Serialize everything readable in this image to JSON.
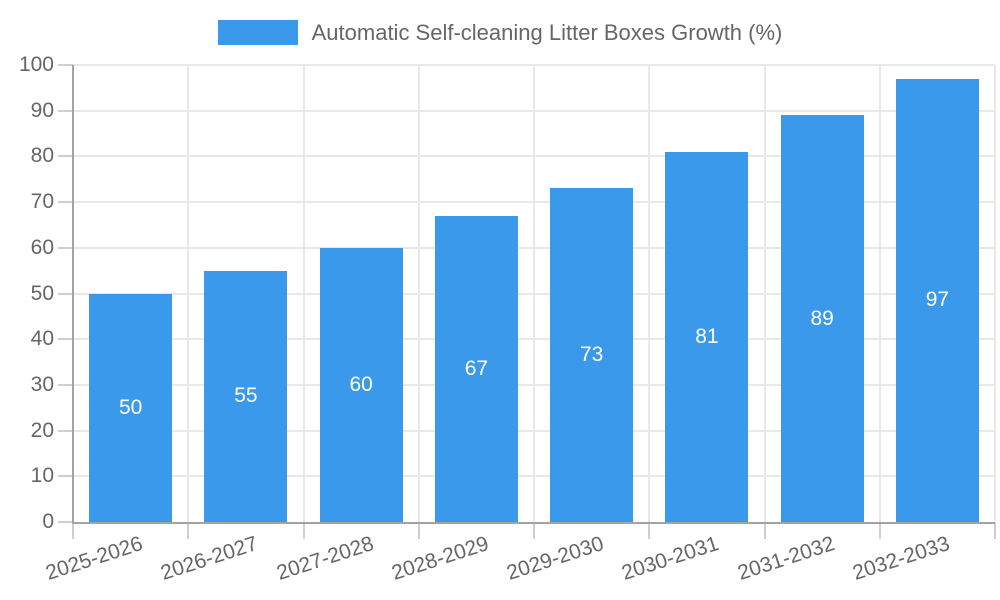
{
  "chart_data": {
    "type": "bar",
    "title": "Automatic Self-cleaning Litter Boxes Growth (%)",
    "categories": [
      "2025-2026",
      "2026-2027",
      "2027-2028",
      "2028-2029",
      "2029-2030",
      "2030-2031",
      "2031-2032",
      "2032-2033"
    ],
    "values": [
      50,
      55,
      60,
      67,
      73,
      81,
      89,
      97
    ],
    "xlabel": "",
    "ylabel": "",
    "ylim": [
      0,
      100
    ],
    "ytick_step": 10,
    "grid": "on",
    "legend_position": "top-center",
    "value_labels": "inside-center",
    "colors": {
      "bar": "#3B99EC",
      "value_label": "#FFFFFF",
      "axis_text": "#666666",
      "grid_line": "#E8E8E8",
      "tick_mark": "#CFCFCF",
      "axis_line": "#A3A3A3",
      "background": "#FFFFFF"
    }
  }
}
